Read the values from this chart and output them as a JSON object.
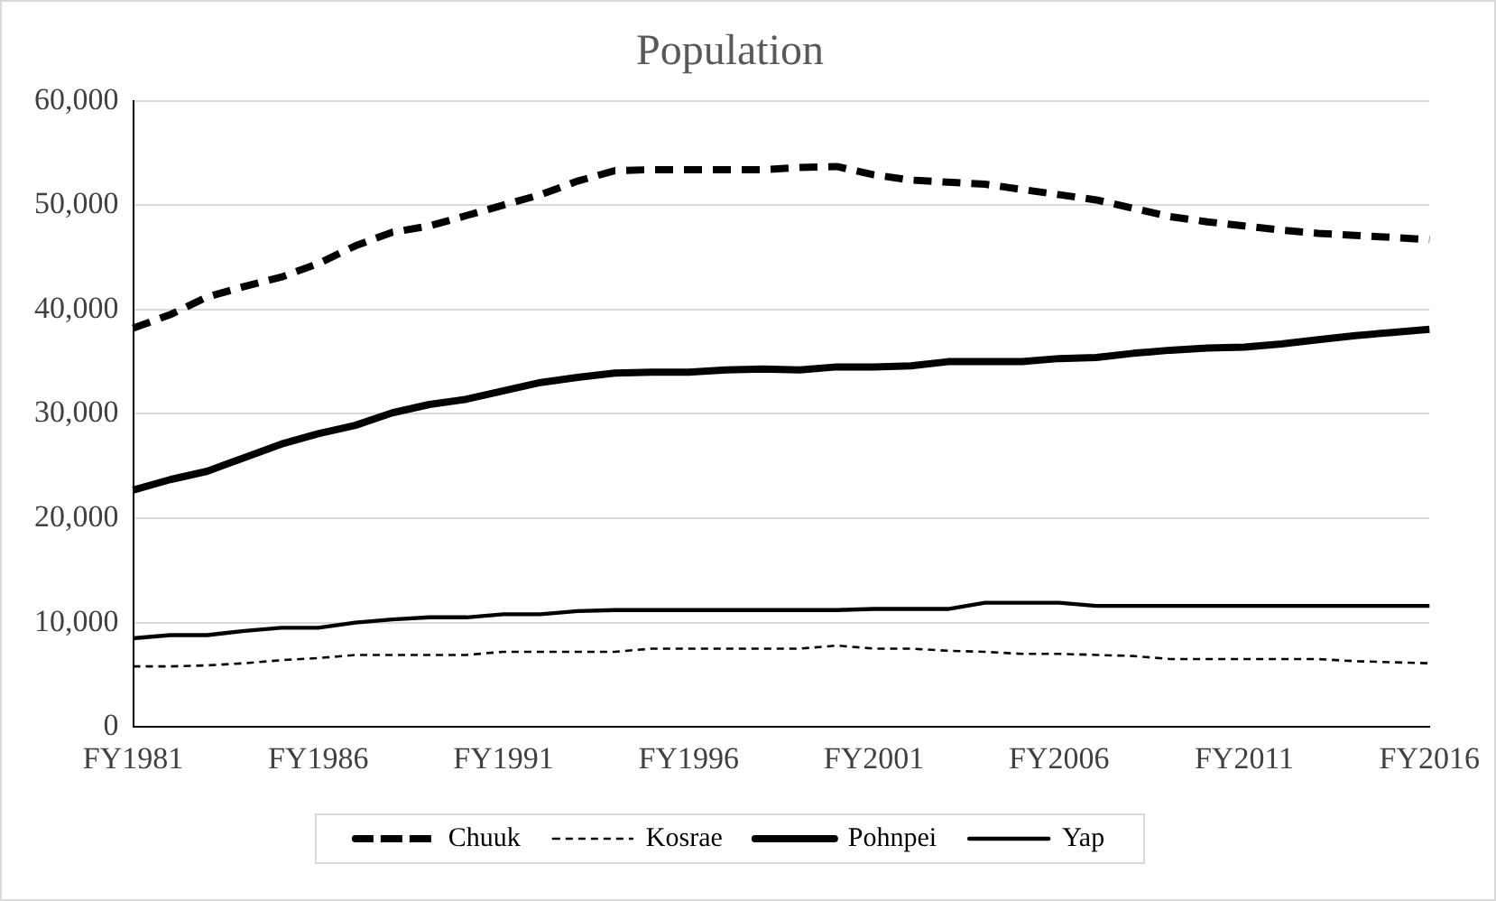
{
  "chart_data": {
    "type": "line",
    "title": "Population",
    "categories": [
      "FY1981",
      null,
      null,
      null,
      null,
      "FY1986",
      null,
      null,
      null,
      null,
      "FY1991",
      null,
      null,
      null,
      null,
      "FY1996",
      null,
      null,
      null,
      null,
      "FY2001",
      null,
      null,
      null,
      null,
      "FY2006",
      null,
      null,
      null,
      null,
      "FY2011",
      null,
      null,
      null,
      null,
      "FY2016"
    ],
    "series": [
      {
        "name": "Chuuk",
        "color": "#000000",
        "line_style": "dashed",
        "values": [
          38200,
          39500,
          41200,
          42200,
          43100,
          44400,
          46100,
          47400,
          48000,
          49000,
          50000,
          51000,
          52300,
          53300,
          53400,
          53400,
          53400,
          53400,
          53600,
          53700,
          52900,
          52400,
          52200,
          52000,
          51500,
          51000,
          50500,
          49700,
          48900,
          48400,
          48000,
          47600,
          47300,
          47100,
          46900,
          46700
        ]
      },
      {
        "name": "Kosrae",
        "color": "#000000",
        "line_style": "dotted",
        "values": [
          5800,
          5800,
          5900,
          6100,
          6400,
          6600,
          6900,
          6900,
          6900,
          6900,
          7200,
          7200,
          7200,
          7200,
          7500,
          7500,
          7500,
          7500,
          7500,
          7800,
          7500,
          7500,
          7300,
          7200,
          7000,
          7000,
          6900,
          6800,
          6500,
          6500,
          6500,
          6500,
          6500,
          6300,
          6200,
          6100
        ]
      },
      {
        "name": "Pohnpei",
        "color": "#000000",
        "line_style": "solid",
        "values": [
          22700,
          23700,
          24500,
          25800,
          27100,
          28100,
          28900,
          30100,
          30900,
          31400,
          32200,
          33000,
          33500,
          33900,
          34000,
          34000,
          34200,
          34300,
          34200,
          34500,
          34500,
          34600,
          35000,
          35000,
          35000,
          35300,
          35400,
          35800,
          36100,
          36300,
          36400,
          36700,
          37100,
          37500,
          37800,
          38100
        ]
      },
      {
        "name": "Yap",
        "color": "#000000",
        "line_style": "solid",
        "values": [
          8500,
          8800,
          8800,
          9200,
          9500,
          9500,
          10000,
          10300,
          10500,
          10500,
          10800,
          10800,
          11100,
          11200,
          11200,
          11200,
          11200,
          11200,
          11200,
          11200,
          11300,
          11300,
          11300,
          11900,
          11900,
          11900,
          11600,
          11600,
          11600,
          11600,
          11600,
          11600,
          11600,
          11600,
          11600,
          11600
        ]
      }
    ],
    "ylim": [
      0,
      60000
    ],
    "yticks": [
      {
        "value": 0,
        "label": "0"
      },
      {
        "value": 10000,
        "label": "10,000"
      },
      {
        "value": 20000,
        "label": "20,000"
      },
      {
        "value": 30000,
        "label": "30,000"
      },
      {
        "value": 40000,
        "label": "40,000"
      },
      {
        "value": 50000,
        "label": "50,000"
      },
      {
        "value": 60000,
        "label": "60,000"
      }
    ],
    "grid": "y",
    "legend": "bottom",
    "marker": "none"
  }
}
